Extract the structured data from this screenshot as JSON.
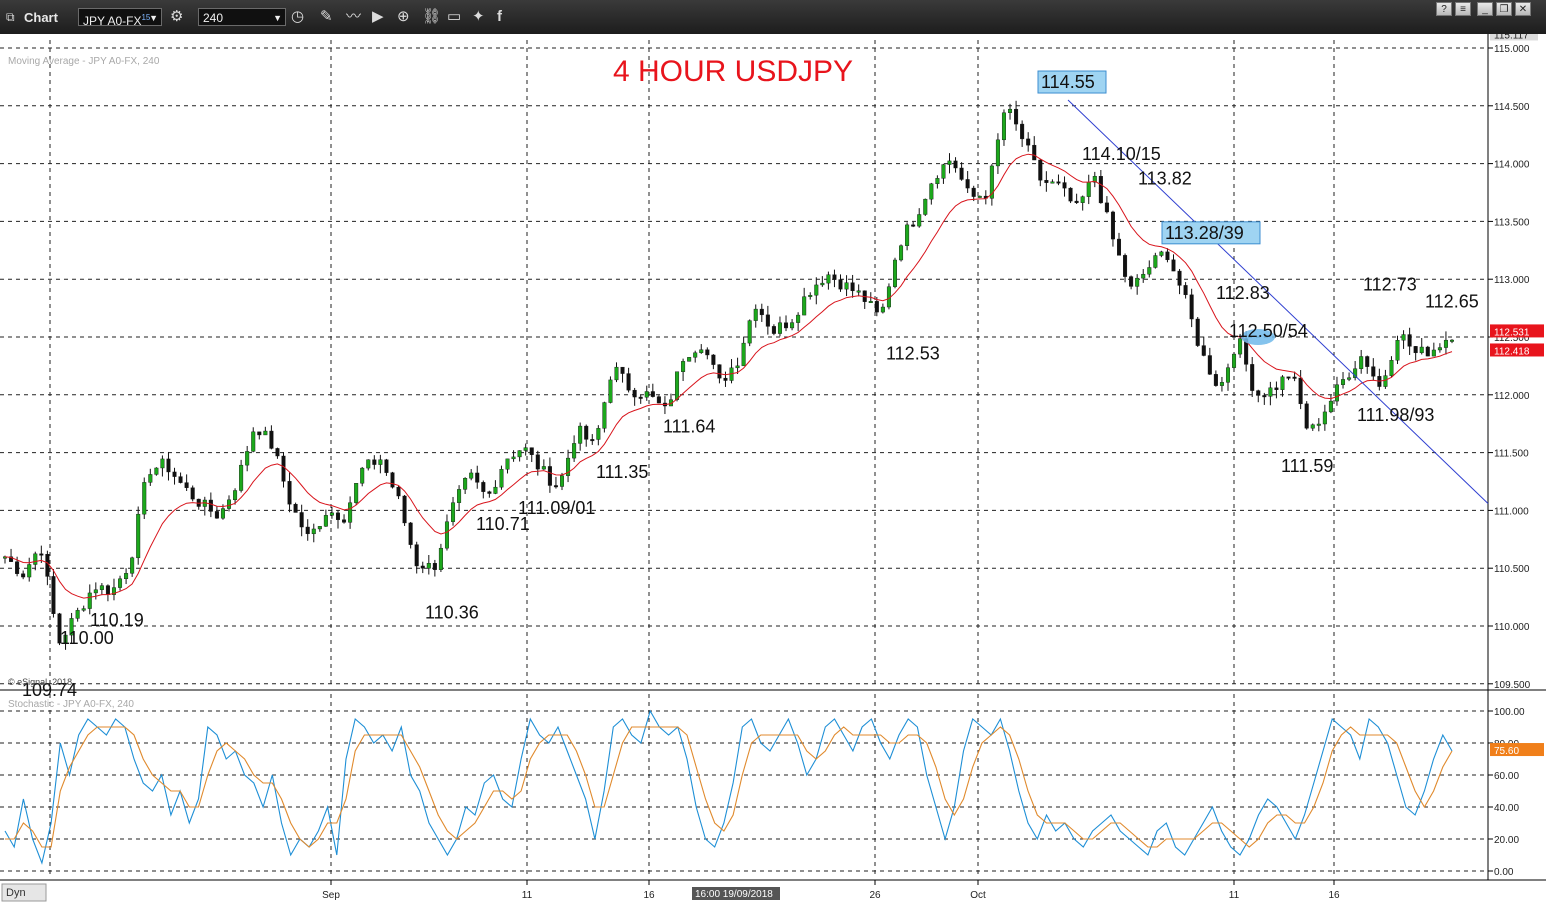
{
  "toolbar": {
    "app_title": "Chart",
    "symbol": "JPY A0-FX",
    "symbol_superscript": "15",
    "interval": "240"
  },
  "footer": {
    "dyn_label": "Dyn"
  },
  "chart_data": [
    {
      "type": "candlestick",
      "title": "4 HOUR USDJPY",
      "study_label": "Moving Average - JPY A0-FX, 240",
      "copyright": "© eSignal, 2018",
      "ylim": [
        109.5,
        115.117
      ],
      "yticks": [
        "115.000",
        "114.500",
        "114.000",
        "113.500",
        "113.000",
        "112.500",
        "112.000",
        "111.500",
        "111.000",
        "110.500",
        "110.000",
        "109.500"
      ],
      "last_price_label": "115.117",
      "price_tags": [
        {
          "label": "112.531",
          "value": 112.531,
          "color": "#e8141c"
        },
        {
          "label": "112.418",
          "value": 112.418,
          "color": "#e8141c"
        }
      ],
      "x_tick_labels": [
        "Sep",
        "11",
        "16",
        "26",
        "Oct",
        "11",
        "16"
      ],
      "crosshair_date": "16:00 19/09/2018",
      "annotations": [
        {
          "label": "109.74",
          "value": 109.74
        },
        {
          "label": "110.00",
          "value": 110.0
        },
        {
          "label": "110.19",
          "value": 110.19
        },
        {
          "label": "110.36",
          "value": 110.36
        },
        {
          "label": "110.71",
          "value": 110.71
        },
        {
          "label": "111.09/01",
          "value": 111.09
        },
        {
          "label": "111.35",
          "value": 111.35
        },
        {
          "label": "111.64",
          "value": 111.64
        },
        {
          "label": "112.53",
          "value": 112.53
        },
        {
          "label": "114.55",
          "value": 114.55,
          "boxed": true
        },
        {
          "label": "114.10/15",
          "value": 114.1
        },
        {
          "label": "113.82",
          "value": 113.82
        },
        {
          "label": "113.28/39",
          "value": 113.28,
          "boxed": true
        },
        {
          "label": "112.83",
          "value": 112.83
        },
        {
          "label": "112.50/54",
          "value": 112.5
        },
        {
          "label": "111.59",
          "value": 111.59
        },
        {
          "label": "111.98/93",
          "value": 111.98
        },
        {
          "label": "112.73",
          "value": 112.73
        },
        {
          "label": "112.65",
          "value": 112.65
        }
      ],
      "trendline": {
        "start": 114.55,
        "end": 111.06
      },
      "anchors": [
        110.6,
        110.45,
        110.7,
        109.85,
        110.1,
        110.35,
        110.3,
        110.55,
        111.35,
        111.4,
        111.2,
        111.05,
        110.95,
        111.25,
        111.75,
        111.55,
        111.05,
        110.75,
        111.0,
        110.95,
        111.35,
        111.45,
        111.1,
        110.55,
        110.5,
        111.0,
        111.3,
        111.1,
        111.45,
        111.55,
        111.35,
        111.2,
        111.7,
        111.55,
        112.25,
        112.05,
        112.0,
        111.85,
        112.35,
        112.45,
        112.1,
        112.3,
        112.8,
        112.55,
        112.65,
        112.9,
        113.05,
        112.95,
        112.85,
        112.65,
        113.3,
        113.55,
        113.9,
        114.05,
        113.7,
        113.75,
        114.5,
        114.2,
        113.85,
        113.8,
        113.6,
        113.9,
        113.35,
        112.9,
        113.1,
        113.25,
        112.85,
        112.35,
        112.05,
        112.5,
        112.0,
        112.05,
        112.2,
        111.65,
        111.9,
        112.15,
        112.35,
        112.05,
        112.55,
        112.35,
        112.4,
        112.53
      ]
    },
    {
      "type": "line",
      "study_label": "Stochastic - JPY A0-FX, 240",
      "ylim": [
        0,
        100
      ],
      "yticks": [
        "100.00",
        "80.00",
        "60.00",
        "40.00",
        "20.00",
        "0.00"
      ],
      "value_tag": "75.60",
      "series": [
        {
          "color": "#1e8fd6",
          "values": [
            25,
            15,
            45,
            20,
            5,
            30,
            80,
            60,
            85,
            95,
            90,
            85,
            95,
            90,
            70,
            55,
            50,
            60,
            35,
            50,
            30,
            45,
            90,
            85,
            70,
            75,
            60,
            55,
            40,
            60,
            30,
            10,
            20,
            15,
            25,
            40,
            10,
            70,
            95,
            90,
            80,
            85,
            75,
            90,
            60,
            50,
            30,
            20,
            10,
            20,
            40,
            35,
            55,
            60,
            45,
            40,
            70,
            95,
            85,
            80,
            90,
            75,
            60,
            45,
            20,
            50,
            90,
            95,
            85,
            80,
            100,
            90,
            85,
            90,
            70,
            40,
            20,
            15,
            30,
            55,
            90,
            95,
            80,
            75,
            85,
            95,
            80,
            60,
            70,
            90,
            95,
            85,
            75,
            90,
            95,
            80,
            70,
            85,
            95,
            90,
            60,
            40,
            20,
            40,
            75,
            95,
            90,
            85,
            95,
            75,
            50,
            30,
            20,
            35,
            25,
            30,
            20,
            15,
            25,
            30,
            35,
            25,
            20,
            15,
            10,
            25,
            30,
            15,
            10,
            20,
            30,
            40,
            25,
            15,
            10,
            20,
            35,
            45,
            40,
            30,
            20,
            35,
            55,
            75,
            95,
            90,
            85,
            70,
            95,
            90,
            80,
            60,
            40,
            35,
            50,
            70,
            85,
            75
          ]
        },
        {
          "color": "#e08a2d",
          "values": [
            20,
            20,
            30,
            25,
            15,
            15,
            50,
            65,
            75,
            85,
            90,
            90,
            90,
            90,
            85,
            70,
            60,
            55,
            50,
            50,
            40,
            40,
            60,
            75,
            80,
            75,
            70,
            60,
            55,
            55,
            45,
            30,
            20,
            15,
            20,
            30,
            30,
            45,
            75,
            85,
            85,
            85,
            85,
            85,
            75,
            65,
            50,
            35,
            25,
            20,
            25,
            30,
            40,
            50,
            50,
            45,
            50,
            70,
            80,
            85,
            85,
            85,
            75,
            60,
            40,
            40,
            60,
            80,
            90,
            90,
            90,
            90,
            90,
            90,
            85,
            65,
            45,
            30,
            25,
            35,
            60,
            80,
            85,
            85,
            85,
            85,
            85,
            75,
            70,
            75,
            85,
            90,
            85,
            85,
            85,
            85,
            80,
            80,
            85,
            85,
            80,
            65,
            45,
            35,
            45,
            65,
            80,
            85,
            90,
            85,
            70,
            50,
            35,
            30,
            30,
            30,
            25,
            20,
            20,
            25,
            30,
            30,
            25,
            20,
            15,
            15,
            20,
            20,
            20,
            20,
            25,
            30,
            30,
            25,
            20,
            15,
            20,
            30,
            35,
            35,
            30,
            30,
            40,
            55,
            75,
            85,
            90,
            85,
            85,
            85,
            85,
            80,
            65,
            50,
            40,
            50,
            65,
            75
          ]
        }
      ]
    }
  ]
}
